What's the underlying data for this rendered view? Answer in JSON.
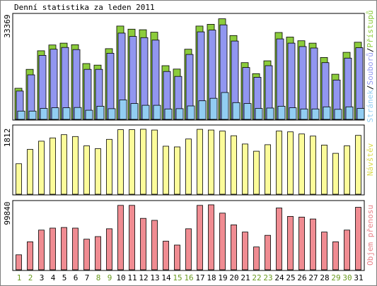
{
  "title": "Denní statistika za leden 2011",
  "chart_data": [
    {
      "type": "bar",
      "panel": "top",
      "ymax_label": "33369",
      "ylim": [
        0,
        33369
      ],
      "x": [
        "1",
        "2",
        "3",
        "4",
        "5",
        "6",
        "7",
        "8",
        "9",
        "10",
        "11",
        "12",
        "13",
        "14",
        "15",
        "16",
        "17",
        "18",
        "19",
        "20",
        "21",
        "22",
        "23",
        "24",
        "25",
        "26",
        "27",
        "28",
        "29",
        "30",
        "31"
      ],
      "series": [
        {
          "name": "Přístupů",
          "color": "#8ccc3c",
          "values": [
            10200,
            16400,
            22500,
            24400,
            25000,
            24500,
            18300,
            17800,
            23200,
            30600,
            29600,
            29400,
            28600,
            17600,
            16500,
            23000,
            30600,
            31200,
            33000,
            27500,
            18600,
            15000,
            19200,
            28500,
            27000,
            25800,
            25000,
            20300,
            14800,
            22000,
            25300
          ]
        },
        {
          "name": "Souborů",
          "color": "#9196f0",
          "values": [
            9300,
            14600,
            21000,
            23000,
            23600,
            22900,
            16400,
            16400,
            21700,
            28300,
            27200,
            26800,
            26000,
            15700,
            14100,
            21300,
            28700,
            29300,
            31000,
            25700,
            17000,
            13800,
            17600,
            26400,
            25000,
            23900,
            23400,
            18600,
            12900,
            20100,
            23500
          ]
        },
        {
          "name": "Stránek",
          "color": "#92cdf2",
          "values": [
            2700,
            2700,
            3600,
            3800,
            3800,
            3900,
            3000,
            4300,
            3500,
            6400,
            5200,
            4600,
            4600,
            3400,
            3500,
            4400,
            6100,
            6900,
            8800,
            5500,
            5200,
            3600,
            3700,
            4300,
            3800,
            3400,
            3400,
            4100,
            3300,
            4100,
            3600
          ]
        }
      ]
    },
    {
      "type": "bar",
      "panel": "middle",
      "ymax_label": "1812",
      "ylim": [
        0,
        1812
      ],
      "series": [
        {
          "name": "Návštěv",
          "color": "#fcfc9a",
          "values": [
            850,
            1250,
            1480,
            1570,
            1660,
            1610,
            1350,
            1270,
            1530,
            1800,
            1800,
            1812,
            1790,
            1340,
            1320,
            1540,
            1810,
            1790,
            1760,
            1630,
            1400,
            1200,
            1380,
            1760,
            1740,
            1680,
            1620,
            1370,
            1140,
            1350,
            1640
          ]
        }
      ]
    },
    {
      "type": "bar",
      "panel": "bottom",
      "ymax_label": "99840",
      "ylim": [
        0,
        99840
      ],
      "series": [
        {
          "name": "Objem přenosu",
          "color": "#f08c92",
          "values": [
            23000,
            43000,
            61000,
            64000,
            65000,
            64000,
            47000,
            51000,
            63000,
            99000,
            99000,
            79000,
            76000,
            44000,
            38000,
            63000,
            99000,
            99840,
            87000,
            69000,
            58000,
            35000,
            53000,
            95000,
            82000,
            81000,
            78000,
            58000,
            43000,
            61000,
            96000
          ]
        }
      ]
    }
  ],
  "x_label_colors": {
    "weekday": "#000000",
    "weekend": "#6a9a1f",
    "weekend_days": [
      "1",
      "2",
      "8",
      "9",
      "15",
      "16",
      "22",
      "23",
      "29",
      "30"
    ]
  }
}
